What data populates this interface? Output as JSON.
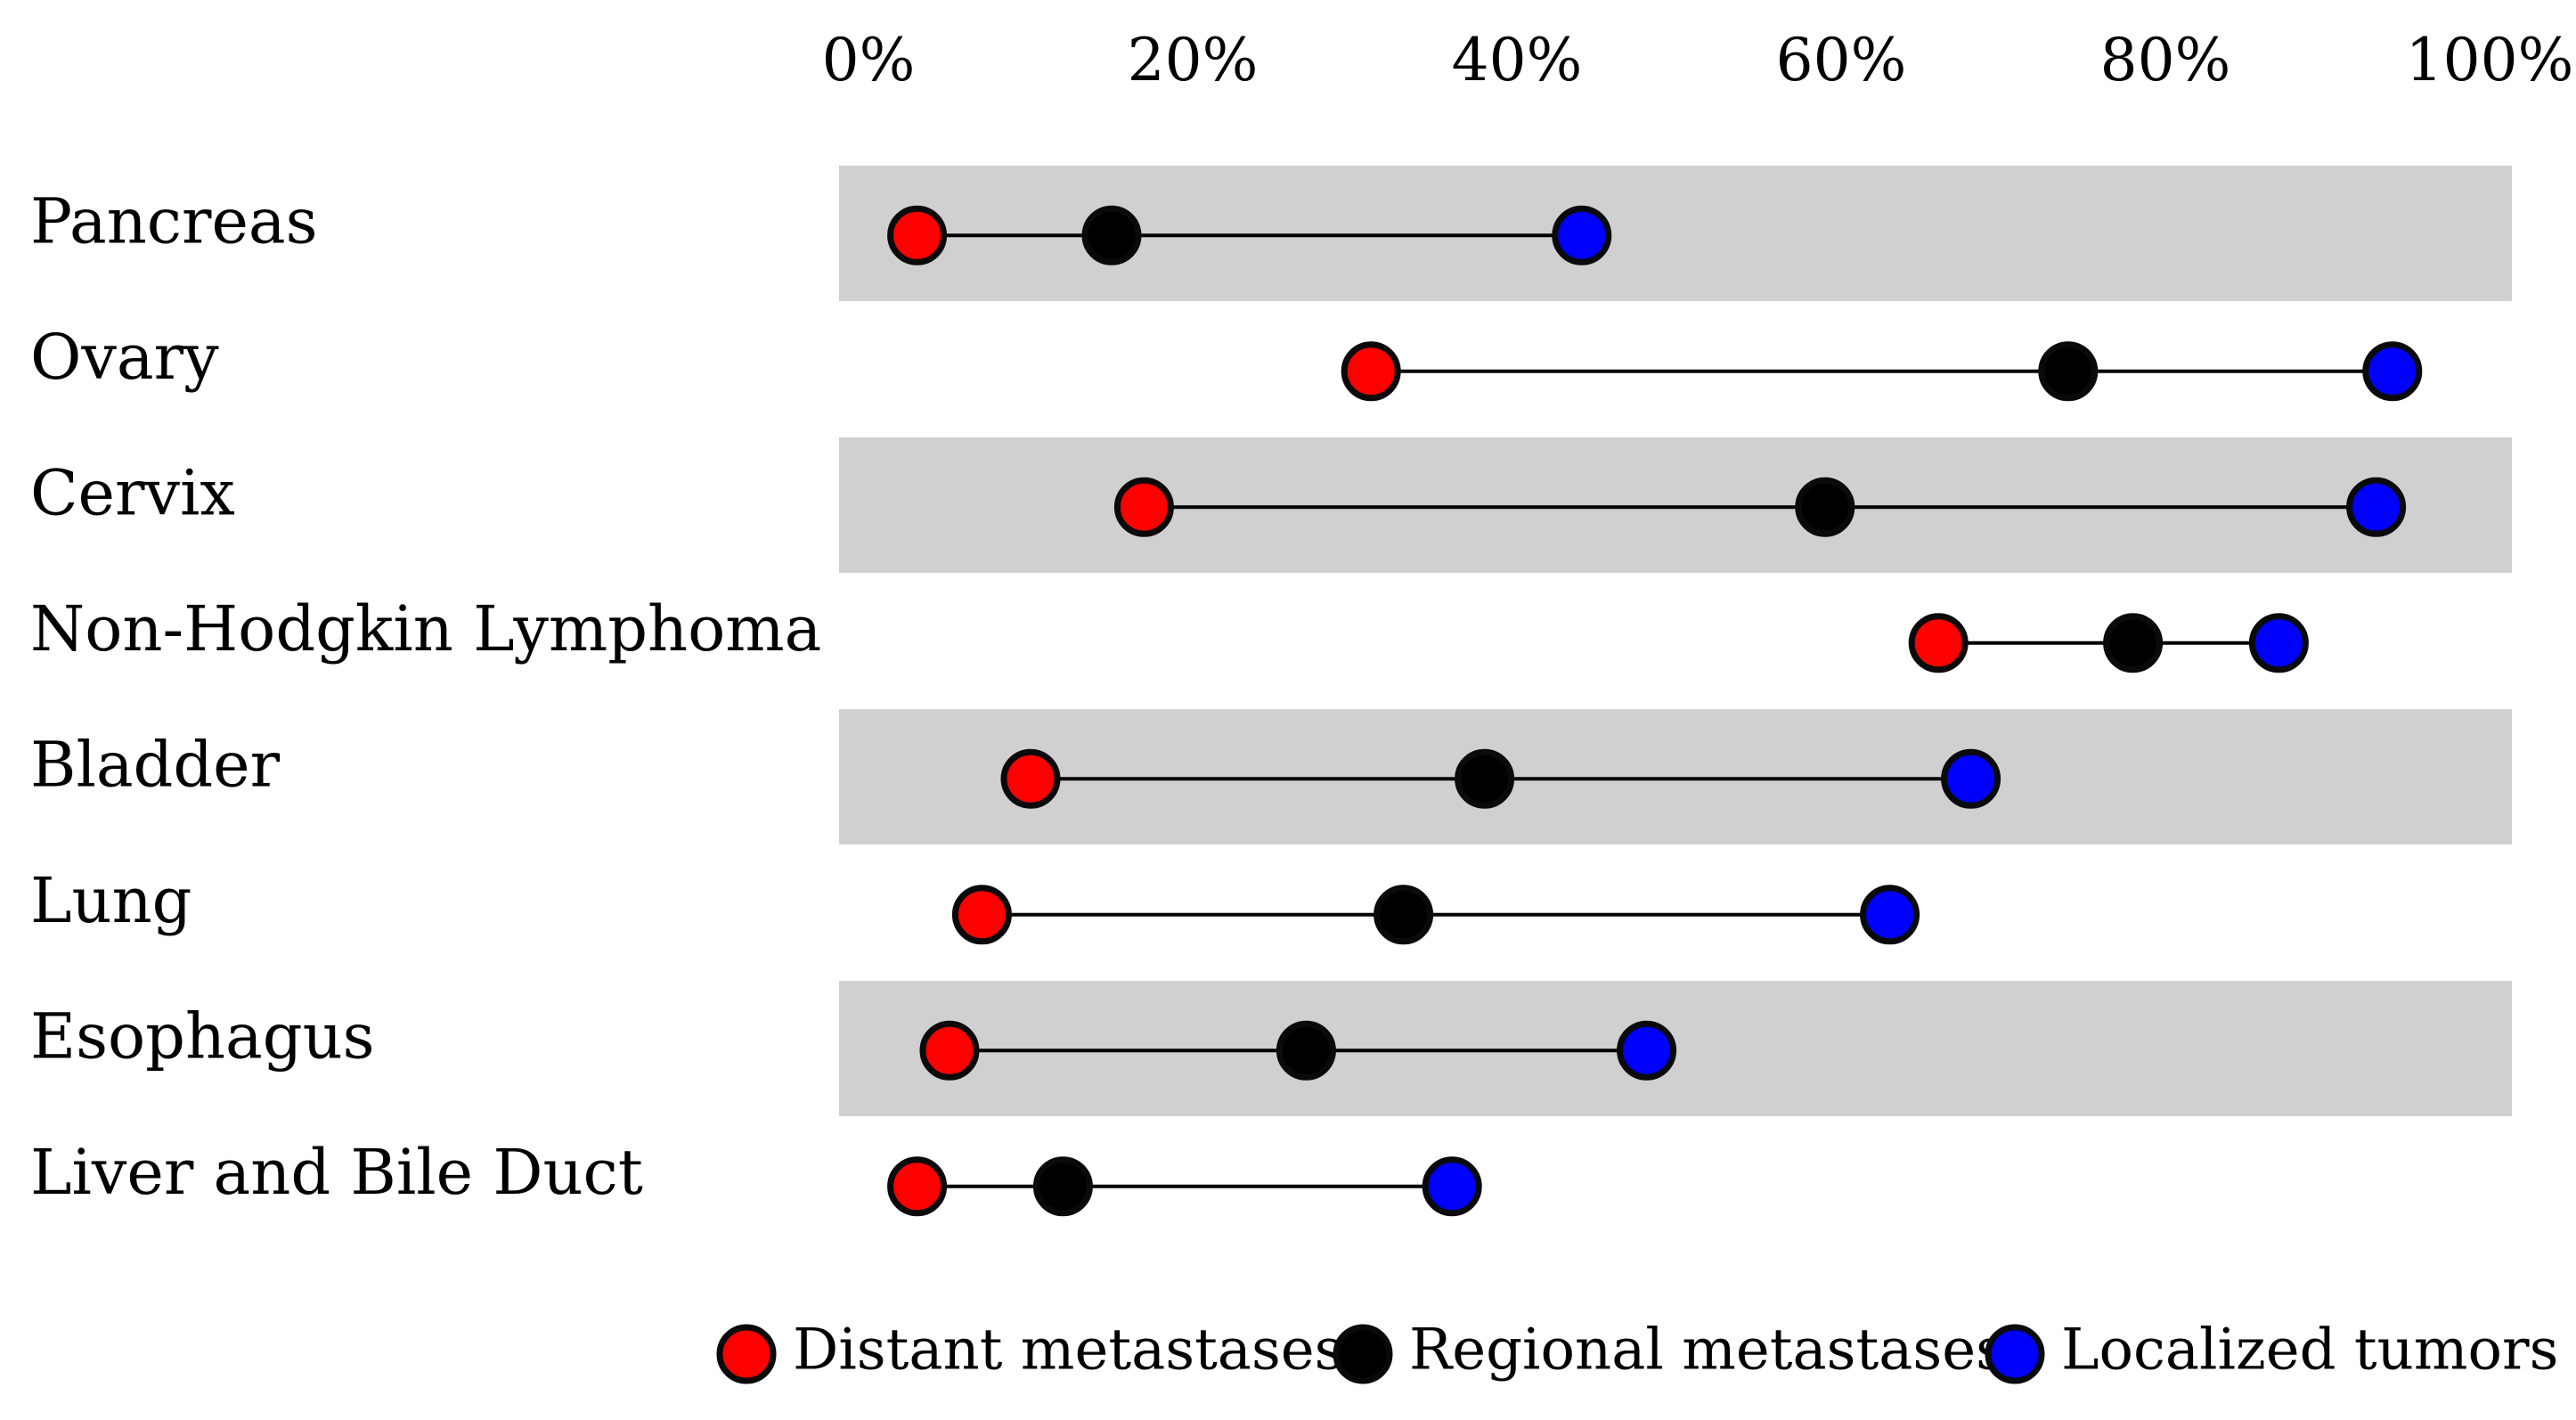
{
  "chart_data": {
    "type": "dumbbell",
    "title": "",
    "xlabel": "",
    "ylabel": "",
    "xlim": [
      0,
      100
    ],
    "xticks": [
      0,
      20,
      40,
      60,
      80,
      100
    ],
    "xtick_labels": [
      "0%",
      "20%",
      "40%",
      "60%",
      "80%",
      "100%"
    ],
    "axis_position": "top",
    "grid": false,
    "legend_position": "bottom",
    "categories": [
      "Pancreas",
      "Ovary",
      "Cervix",
      "Non-Hodgkin Lymphoma",
      "Bladder",
      "Lung",
      "Esophagus",
      "Liver and Bile Duct"
    ],
    "series": [
      {
        "name": "Distant metastases",
        "color": "#ff0000",
        "values": [
          3,
          31,
          17,
          66,
          10,
          7,
          5,
          3
        ]
      },
      {
        "name": "Regional metastases",
        "color": "#000000",
        "values": [
          15,
          74,
          59,
          78,
          38,
          33,
          27,
          12
        ]
      },
      {
        "name": "Localized tumors",
        "color": "#0000ff",
        "values": [
          44,
          94,
          93,
          87,
          68,
          63,
          48,
          36
        ]
      }
    ],
    "band_color": "#d0d0d0"
  }
}
